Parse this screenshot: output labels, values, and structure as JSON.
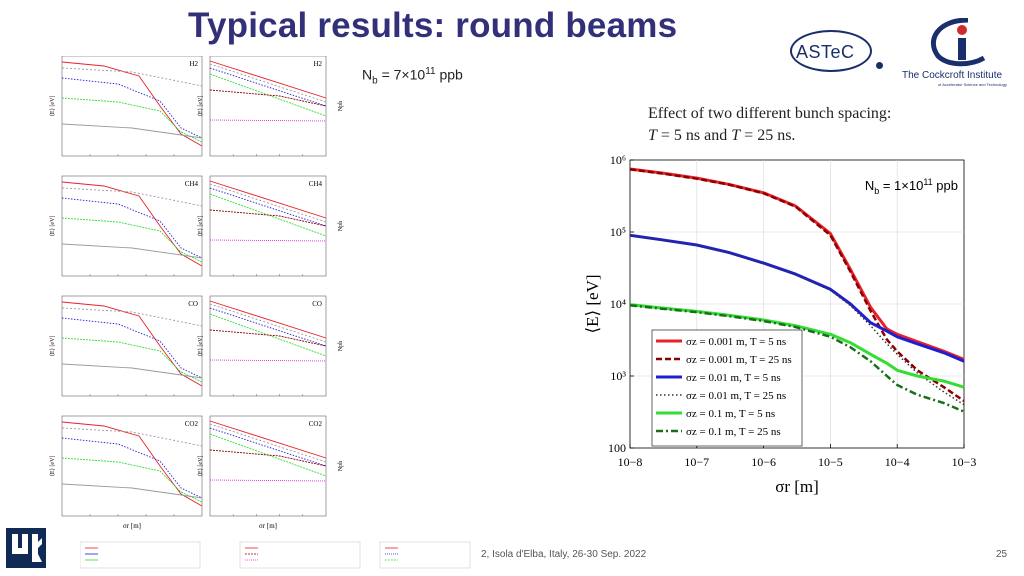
{
  "slide": {
    "title": "Typical results: round beams",
    "nb_top": {
      "prefix": "N",
      "sub": "b",
      "mid": " = 7×10",
      "sup": "11",
      "unit": " ppb"
    },
    "effect_line1": "Effect of two different bunch spacing:",
    "effect_line2_t1": "T",
    "effect_line2_mid": " = 5 ns and ",
    "effect_line2_t2": "T",
    "effect_line2_end": " = 25 ns.",
    "footer": "2, Isola d'Elba, Italy, 26-30 Sep. 2022",
    "page_number": "25",
    "logos": {
      "astec": "ASTeC",
      "cockcroft": "The Cockcroft Institute",
      "cockcroft_sub": "of Accelerator Science and Technology"
    }
  },
  "colors": {
    "title": "#33307a",
    "red": "#e8202a",
    "darkred": "#8b0000",
    "blue": "#1f1fd0",
    "green": "#33dd33",
    "darkgreen": "#1a6e1a",
    "magenta": "#e02ce0",
    "gray": "#9a9a9a"
  },
  "chart_data": [
    {
      "type": "line",
      "id": "main",
      "xscale": "log",
      "yscale": "log",
      "xlim": [
        1e-08,
        0.001
      ],
      "ylim": [
        100,
        1000000
      ],
      "xticks": [
        "10−8",
        "10−7",
        "10−6",
        "10−5",
        "10−4",
        "10−3"
      ],
      "yticks": [
        "100",
        "10³",
        "10⁴",
        "10⁵",
        "10⁶"
      ],
      "xlabel": "σr [m]",
      "ylabel": "⟨E⟩ [eV]",
      "annotation": {
        "prefix": "N",
        "sub": "b",
        "mid": " = 1×10",
        "sup": "11",
        "unit": " ppb"
      },
      "legend_placement": "bottom-left",
      "x": [
        1e-08,
        3e-08,
        1e-07,
        3e-07,
        1e-06,
        3e-06,
        1e-05,
        2e-05,
        4e-05,
        7e-05,
        0.0001,
        0.0002,
        0.0005,
        0.001
      ],
      "series": [
        {
          "name": "σz = 0.001 m, T = 5 ns",
          "color": "#e8202a",
          "dash": "solid",
          "width": 3,
          "values": [
            750000,
            660000,
            560000,
            460000,
            350000,
            230000,
            95000,
            30000,
            9000,
            4500,
            3800,
            3000,
            2200,
            1700
          ]
        },
        {
          "name": "σz = 0.001 m, T = 25 ns",
          "color": "#8b0000",
          "dash": "dash",
          "width": 2.5,
          "values": [
            740000,
            650000,
            550000,
            455000,
            345000,
            225000,
            90000,
            28000,
            8000,
            3200,
            2200,
            1200,
            700,
            450
          ]
        },
        {
          "name": "σz = 0.01 m, T = 5 ns",
          "color": "#1f1fd0",
          "dash": "solid",
          "width": 3,
          "values": [
            90000,
            78000,
            66000,
            52000,
            37000,
            26000,
            16000,
            10000,
            5500,
            4200,
            3500,
            2800,
            2100,
            1600
          ]
        },
        {
          "name": "σz = 0.01 m, T = 25 ns",
          "color": "#333333",
          "dash": "dot",
          "width": 1.5,
          "values": [
            89000,
            77000,
            65000,
            51000,
            36500,
            25500,
            15500,
            9500,
            5000,
            2800,
            2000,
            1100,
            600,
            400
          ]
        },
        {
          "name": "σz = 0.1 m, T = 5 ns",
          "color": "#33dd33",
          "dash": "solid",
          "width": 3,
          "values": [
            9800,
            8800,
            7900,
            7000,
            6000,
            5000,
            3800,
            2900,
            2000,
            1500,
            1200,
            1000,
            850,
            700
          ]
        },
        {
          "name": "σz = 0.1 m, T = 25 ns",
          "color": "#1a6e1a",
          "dash": "dashdot",
          "width": 2.5,
          "values": [
            9600,
            8600,
            7700,
            6800,
            5800,
            4800,
            3500,
            2500,
            1600,
            1000,
            750,
            550,
            420,
            320
          ]
        }
      ]
    },
    {
      "type": "line",
      "id": "small-panels",
      "gas_labels": [
        "H2",
        "CH4",
        "CO",
        "CO2"
      ],
      "column_xlabels": [
        "σr [m]",
        "σr [m]",
        "σr [m]"
      ],
      "column_ylabels": [
        "⟨E⟩ [eV]",
        "⟨E⟩ [eV]",
        "Nph"
      ]
    }
  ]
}
